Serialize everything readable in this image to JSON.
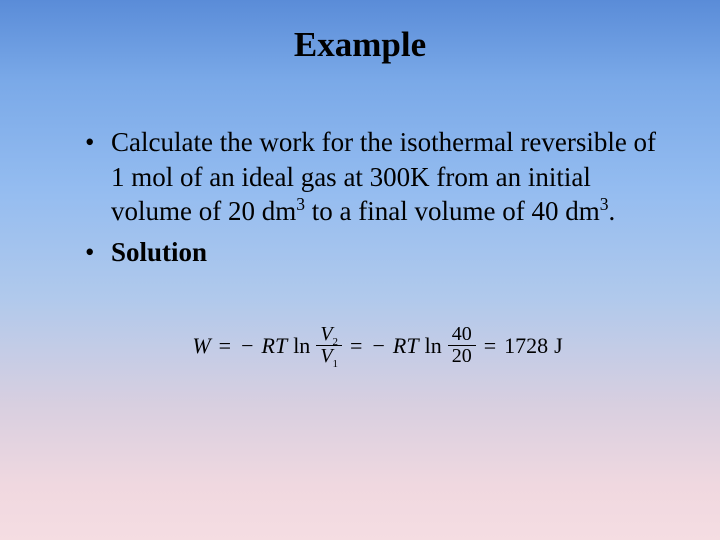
{
  "title": "Example",
  "bullets": {
    "problem_html": "Calculate the work for the isothermal reversible of 1 mol of an ideal gas at 300K from an initial volume of 20 dm<span class=\"super\">3</span> to a final volume of 40 dm<span class=\"super\">3</span>.",
    "solution_label": "Solution"
  },
  "equation": {
    "lhs_var": "W",
    "eq": "=",
    "minus": "−",
    "R": "R",
    "T": "T",
    "ln": "ln",
    "V": "V",
    "sub2": "2",
    "sub1": "1",
    "num2": "40",
    "den2": "20",
    "result_val": "1728",
    "unit": "J"
  },
  "colors": {
    "text": "#000000",
    "bg_top": "#5a8cd8",
    "bg_bottom": "#f5dde2"
  },
  "fonts": {
    "title_size_pt": 28,
    "body_size_pt": 22,
    "equation_size_pt": 18
  }
}
